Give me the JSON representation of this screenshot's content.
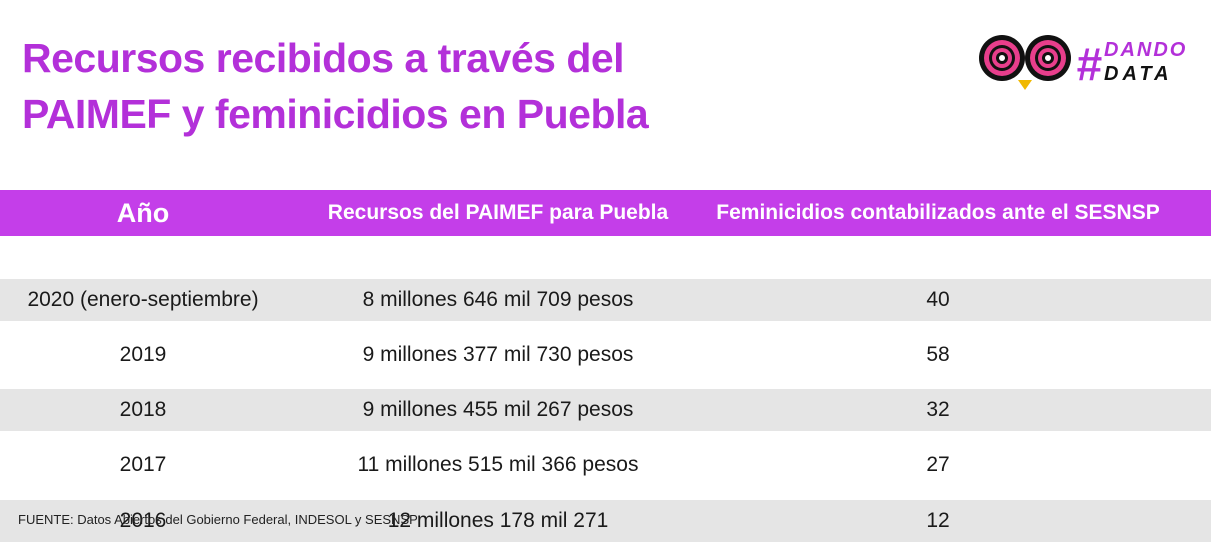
{
  "header": {
    "title": "Recursos recibidos a través del PAIMEF y feminicidios en Puebla",
    "logo": {
      "hash": "#",
      "line1": "DANDO",
      "line2": "DATA"
    }
  },
  "table": {
    "columns": [
      "Año",
      "Recursos del PAIMEF para Puebla",
      "Feminicidios contabilizados ante el SESNSP"
    ],
    "rows": [
      [
        "2020 (enero-septiembre)",
        "8 millones 646 mil 709 pesos",
        40
      ],
      [
        "2019",
        "9 millones 377 mil 730 pesos",
        58
      ],
      [
        "2018",
        "9 millones 455 mil 267 pesos",
        32
      ],
      [
        "2017",
        "11 millones 515 mil 366 pesos",
        27
      ],
      [
        "2016",
        "12 millones 178 mil 271",
        12
      ]
    ]
  },
  "source": "FUENTE: Datos Abiertos del Gobierno Federal, INDESOL y SESNSP"
}
